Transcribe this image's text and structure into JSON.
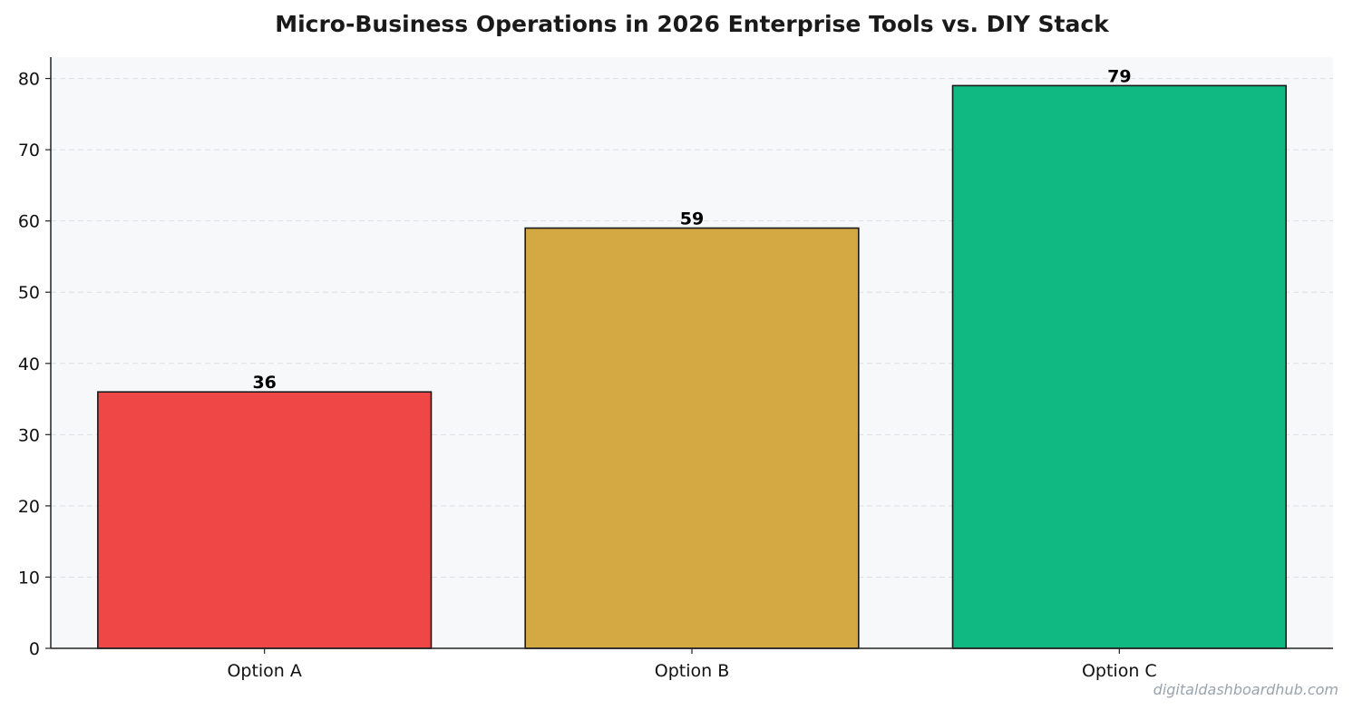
{
  "chart_data": {
    "type": "bar",
    "title": "Micro-Business Operations in 2026  Enterprise Tools vs. DIY Stack",
    "xlabel": "",
    "ylabel": "",
    "categories": [
      "Option A",
      "Option B",
      "Option C"
    ],
    "values": [
      36,
      59,
      79
    ],
    "data_labels": [
      "36",
      "59",
      "79"
    ],
    "colors": [
      "#ef4646",
      "#d4a843",
      "#10b981"
    ],
    "ylim": [
      0,
      83
    ],
    "yticks": [
      0,
      10,
      20,
      30,
      40,
      50,
      60,
      70,
      80
    ],
    "grid": "y-dashed",
    "legend": "none",
    "plot_background": "#f7f8fa"
  },
  "watermark": "digitaldashboardhub.com"
}
